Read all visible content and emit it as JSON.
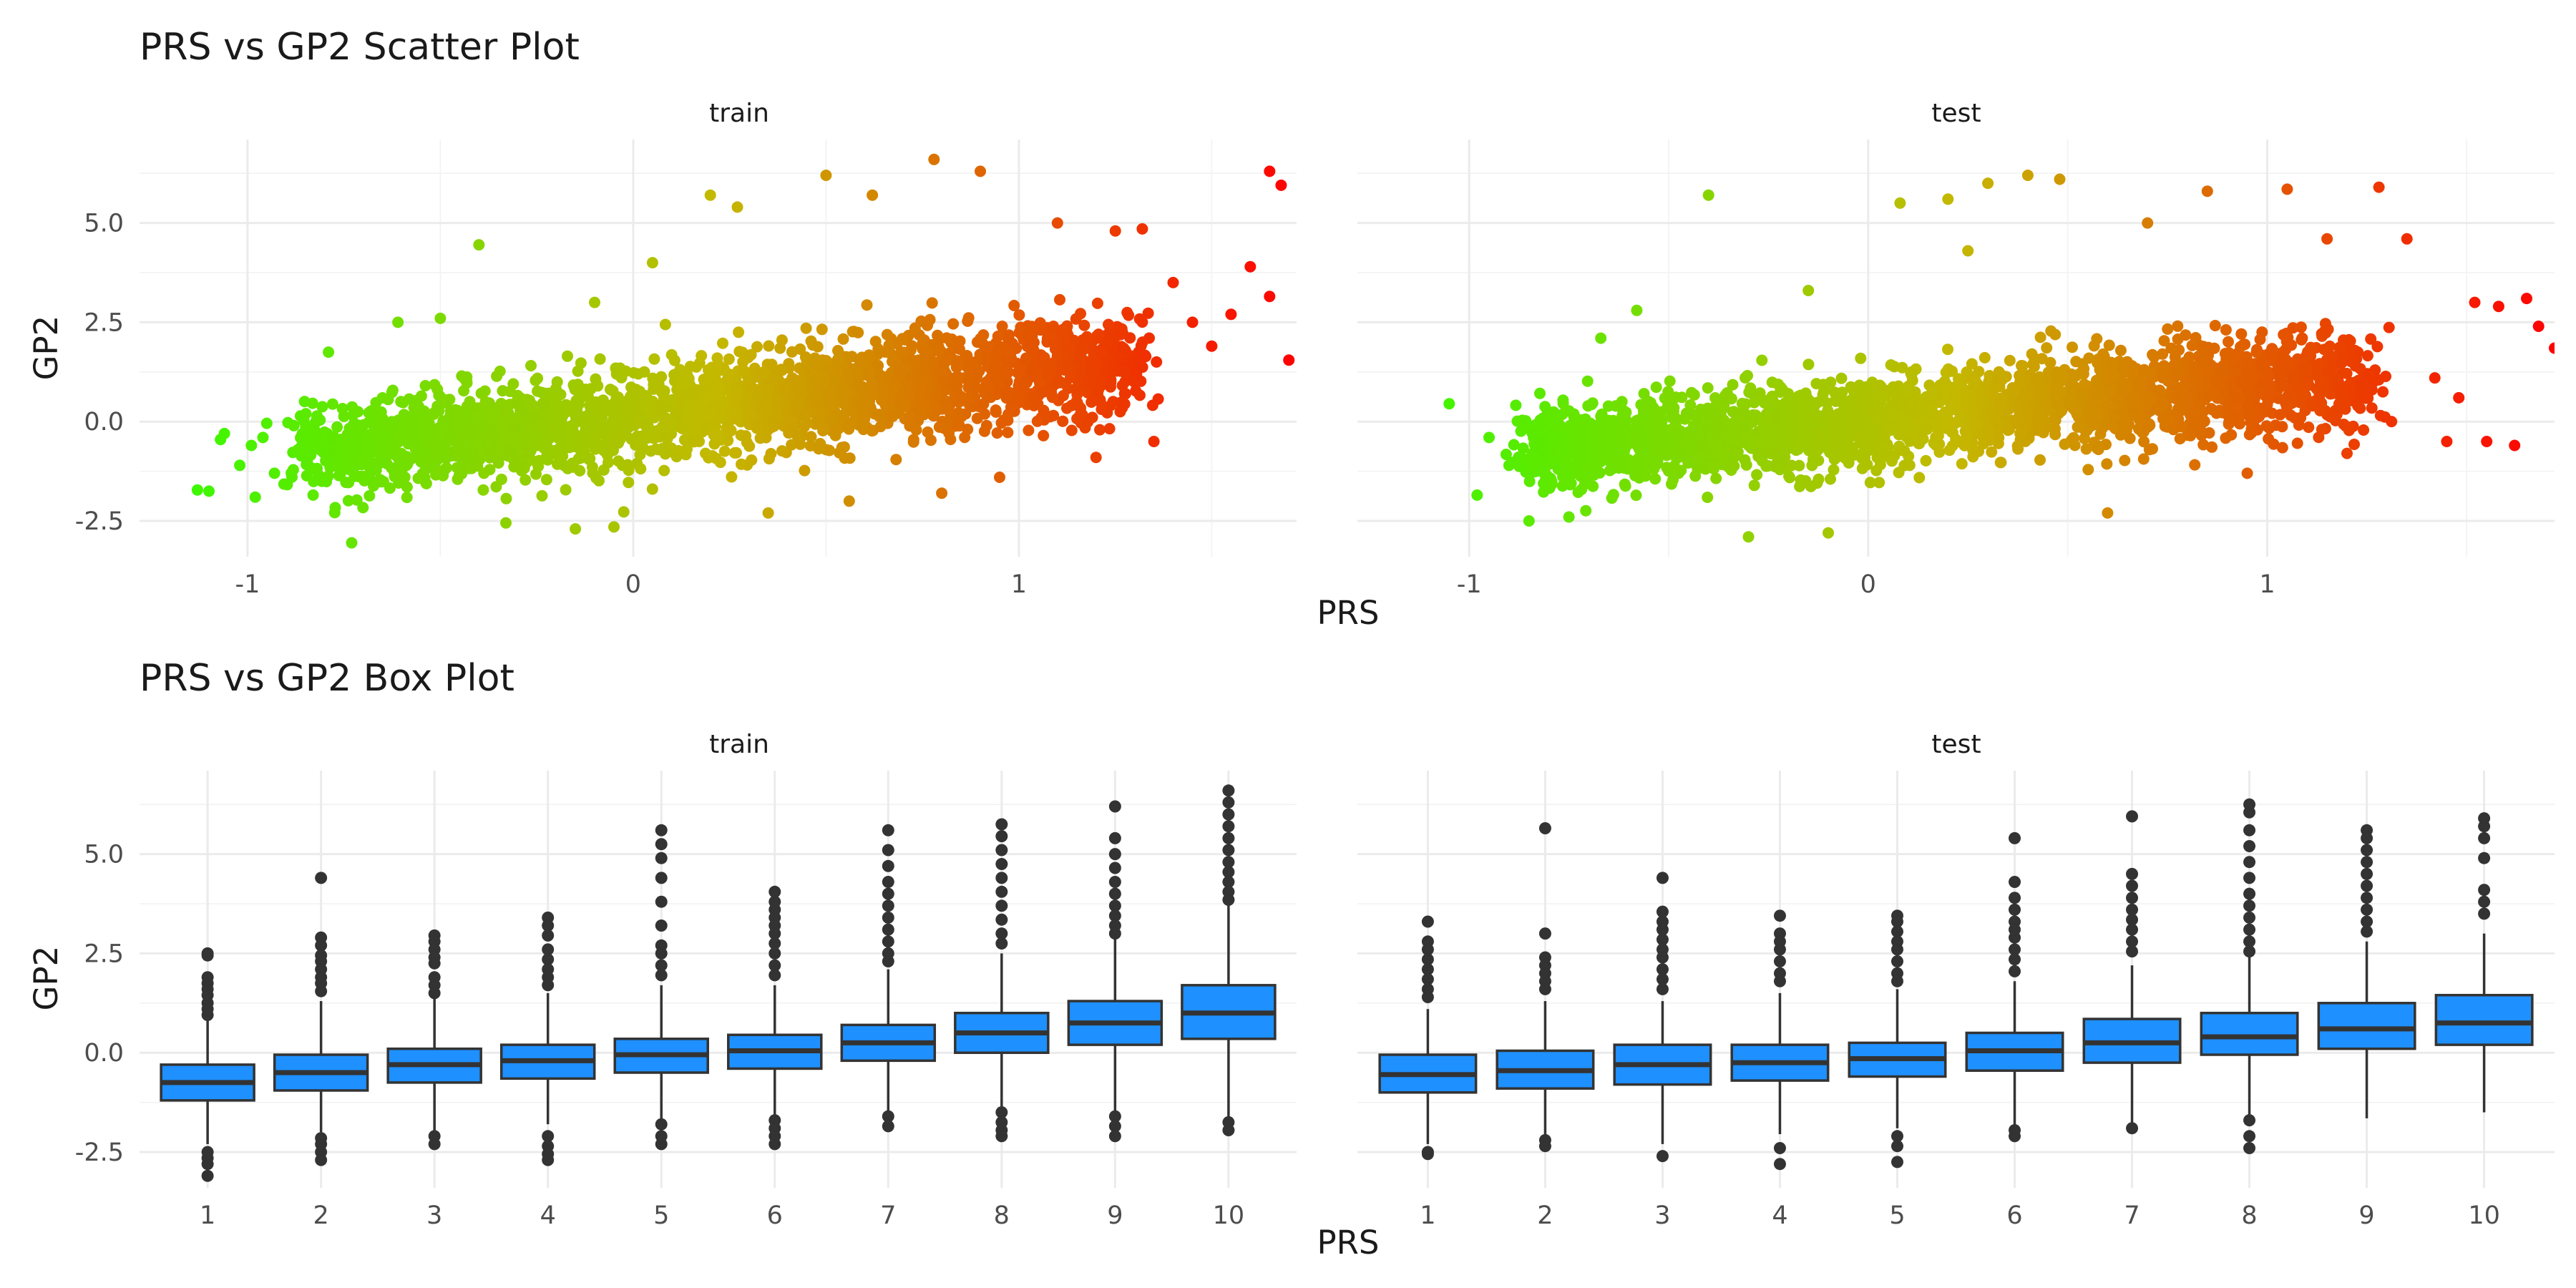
{
  "chart_data": [
    {
      "type": "scatter",
      "title": "PRS vs GP2 Scatter Plot",
      "xlabel": "PRS",
      "ylabel": "GP2",
      "color_low": "#2fff00",
      "color_mid": "#c4b800",
      "color_high": "#ff0000",
      "grid": true,
      "legend": "none",
      "panels": [
        {
          "label": "train",
          "xlim": [
            -1.28,
            1.72
          ],
          "ylim": [
            -3.4,
            7.1
          ],
          "x_ticks": [
            -1,
            0,
            1
          ],
          "x_tick_labels": [
            "-1",
            "0",
            "1"
          ],
          "y_ticks": [
            -2.5,
            0,
            2.5,
            5
          ],
          "y_tick_labels": [
            "-2.5",
            "0.0",
            "2.5",
            "5.0"
          ],
          "points": [
            [
              -1.13,
              -1.72
            ],
            [
              -1.1,
              -1.75
            ],
            [
              -1.07,
              -0.45
            ],
            [
              -1.06,
              -0.3
            ],
            [
              -1.02,
              -1.1
            ],
            [
              -0.99,
              -0.6
            ],
            [
              -0.98,
              -1.9
            ],
            [
              -0.96,
              -0.4
            ],
            [
              -0.93,
              -1.3
            ],
            [
              -0.88,
              -0.1
            ],
            [
              -0.82,
              0.1
            ],
            [
              -0.79,
              1.75
            ],
            [
              -0.73,
              -3.05
            ],
            [
              -0.61,
              2.5
            ],
            [
              -0.5,
              2.6
            ],
            [
              -0.4,
              4.45
            ],
            [
              -0.33,
              -2.55
            ],
            [
              -0.15,
              -2.7
            ],
            [
              -0.1,
              3.0
            ],
            [
              -0.05,
              -2.65
            ],
            [
              0.05,
              4.0
            ],
            [
              0.2,
              5.7
            ],
            [
              0.27,
              5.4
            ],
            [
              0.35,
              -2.3
            ],
            [
              0.5,
              6.2
            ],
            [
              0.56,
              -2.0
            ],
            [
              0.62,
              5.7
            ],
            [
              0.78,
              6.6
            ],
            [
              0.8,
              -1.8
            ],
            [
              0.9,
              6.3
            ],
            [
              0.95,
              -1.4
            ],
            [
              1.1,
              5.0
            ],
            [
              1.2,
              -0.9
            ],
            [
              1.25,
              4.8
            ],
            [
              1.32,
              4.85
            ],
            [
              1.35,
              -0.5
            ],
            [
              1.4,
              3.5
            ],
            [
              1.45,
              2.5
            ],
            [
              1.5,
              1.9
            ],
            [
              1.55,
              2.7
            ],
            [
              1.6,
              3.9
            ],
            [
              1.65,
              6.3
            ],
            [
              1.68,
              5.95
            ],
            [
              1.65,
              3.15
            ],
            [
              1.7,
              1.55
            ]
          ],
          "bulk_fit": {
            "intercept": 0.12,
            "slope": 1.1,
            "x_range": [
              -0.85,
              1.3
            ],
            "sd": [
              1.0,
              1.2,
              1.6
            ]
          }
        },
        {
          "label": "test",
          "xlim": [
            -1.28,
            1.72
          ],
          "ylim": [
            -3.4,
            7.1
          ],
          "x_ticks": [
            -1,
            0,
            1
          ],
          "x_tick_labels": [
            "-1",
            "0",
            "1"
          ],
          "y_ticks": [
            -2.5,
            0,
            2.5,
            5
          ],
          "y_tick_labels": [
            "-2.5",
            "0.0",
            "2.5",
            "5.0"
          ],
          "points": [
            [
              -1.05,
              0.45
            ],
            [
              -0.98,
              -1.85
            ],
            [
              -0.95,
              -0.4
            ],
            [
              -0.9,
              -1.1
            ],
            [
              -0.85,
              -2.5
            ],
            [
              -0.75,
              -2.4
            ],
            [
              -0.67,
              2.1
            ],
            [
              -0.58,
              2.8
            ],
            [
              -0.4,
              5.7
            ],
            [
              -0.3,
              -2.9
            ],
            [
              -0.15,
              3.3
            ],
            [
              -0.1,
              -2.8
            ],
            [
              0.08,
              5.5
            ],
            [
              0.2,
              5.6
            ],
            [
              0.25,
              4.3
            ],
            [
              0.3,
              6.0
            ],
            [
              0.4,
              6.2
            ],
            [
              0.48,
              6.1
            ],
            [
              0.6,
              -2.3
            ],
            [
              0.7,
              5.0
            ],
            [
              0.85,
              5.8
            ],
            [
              0.95,
              -1.3
            ],
            [
              1.05,
              5.85
            ],
            [
              1.15,
              4.6
            ],
            [
              1.2,
              -0.8
            ],
            [
              1.28,
              5.9
            ],
            [
              1.35,
              4.6
            ],
            [
              1.42,
              1.1
            ],
            [
              1.45,
              -0.5
            ],
            [
              1.48,
              0.6
            ],
            [
              1.52,
              3.0
            ],
            [
              1.55,
              -0.5
            ],
            [
              1.58,
              2.9
            ],
            [
              1.62,
              -0.6
            ],
            [
              1.65,
              3.1
            ],
            [
              1.68,
              2.4
            ],
            [
              1.72,
              1.85
            ]
          ],
          "bulk_fit": {
            "intercept": 0.05,
            "slope": 0.9,
            "x_range": [
              -0.85,
              1.25
            ],
            "sd": [
              0.95,
              1.15,
              1.55
            ]
          }
        }
      ]
    },
    {
      "type": "box",
      "title": "PRS vs GP2 Box Plot",
      "xlabel": "PRS",
      "ylabel": "GP2",
      "box_color": "#1e90ff",
      "line_color": "#333333",
      "grid": true,
      "legend": "none",
      "categories": [
        "1",
        "2",
        "3",
        "4",
        "5",
        "6",
        "7",
        "8",
        "9",
        "10"
      ],
      "panels": [
        {
          "label": "train",
          "ylim": [
            -3.4,
            7.1
          ],
          "y_ticks": [
            -2.5,
            0,
            2.5,
            5
          ],
          "y_tick_labels": [
            "-2.5",
            "0.0",
            "2.5",
            "5.0"
          ],
          "boxes": [
            {
              "q1": -1.2,
              "median": -0.75,
              "q3": -0.3,
              "low": -2.3,
              "high": 0.8
            },
            {
              "q1": -0.95,
              "median": -0.5,
              "q3": -0.05,
              "low": -2.0,
              "high": 1.3
            },
            {
              "q1": -0.75,
              "median": -0.3,
              "q3": 0.1,
              "low": -2.0,
              "high": 1.4
            },
            {
              "q1": -0.65,
              "median": -0.2,
              "q3": 0.2,
              "low": -1.8,
              "high": 1.5
            },
            {
              "q1": -0.5,
              "median": -0.05,
              "q3": 0.35,
              "low": -1.7,
              "high": 1.7
            },
            {
              "q1": -0.4,
              "median": 0.05,
              "q3": 0.45,
              "low": -1.6,
              "high": 1.7
            },
            {
              "q1": -0.2,
              "median": 0.25,
              "q3": 0.7,
              "low": -1.5,
              "high": 2.1
            },
            {
              "q1": 0.0,
              "median": 0.5,
              "q3": 1.0,
              "low": -1.4,
              "high": 2.5
            },
            {
              "q1": 0.2,
              "median": 0.75,
              "q3": 1.3,
              "low": -1.5,
              "high": 2.9
            },
            {
              "q1": 0.35,
              "median": 1.0,
              "q3": 1.7,
              "low": -1.6,
              "high": 3.7
            }
          ],
          "outliers": [
            [
              2.5,
              2.45,
              1.9,
              1.75,
              1.6,
              1.45,
              1.25,
              1.1,
              0.95,
              -2.5,
              -2.65,
              -2.8,
              -3.1
            ],
            [
              4.4,
              2.9,
              2.7,
              2.45,
              2.3,
              2.1,
              1.9,
              1.75,
              1.55,
              -2.15,
              -2.3,
              -2.5,
              -2.7
            ],
            [
              2.95,
              2.8,
              2.6,
              2.4,
              2.25,
              1.9,
              1.7,
              1.5,
              -2.1,
              -2.3
            ],
            [
              3.4,
              3.2,
              2.95,
              2.6,
              2.35,
              2.1,
              1.9,
              1.7,
              -2.1,
              -2.35,
              -2.55,
              -2.7
            ],
            [
              5.6,
              5.25,
              4.9,
              4.4,
              3.8,
              3.2,
              2.7,
              2.5,
              2.2,
              1.95,
              -1.8,
              -2.1,
              -2.3
            ],
            [
              4.05,
              3.8,
              3.6,
              3.4,
              3.2,
              3.0,
              2.75,
              2.5,
              2.2,
              1.95,
              -1.7,
              -1.9,
              -2.1,
              -2.3
            ],
            [
              5.6,
              5.1,
              4.7,
              4.3,
              4.0,
              3.7,
              3.4,
              3.1,
              2.8,
              2.5,
              2.3,
              -1.6,
              -1.85
            ],
            [
              5.75,
              5.45,
              5.1,
              4.75,
              4.4,
              4.05,
              3.7,
              3.35,
              3.0,
              2.75,
              -1.5,
              -1.75,
              -1.95,
              -2.1
            ],
            [
              6.2,
              5.4,
              5.0,
              4.65,
              4.3,
              4.0,
              3.7,
              3.45,
              3.2,
              3.0,
              -1.6,
              -1.85,
              -2.1
            ],
            [
              6.6,
              6.3,
              6.0,
              5.7,
              5.4,
              5.1,
              4.8,
              4.55,
              4.3,
              4.05,
              3.85,
              -1.75,
              -1.95
            ]
          ]
        },
        {
          "label": "test",
          "ylim": [
            -3.4,
            7.1
          ],
          "y_ticks": [
            -2.5,
            0,
            2.5,
            5
          ],
          "y_tick_labels": [
            "-2.5",
            "0.0",
            "2.5",
            "5.0"
          ],
          "boxes": [
            {
              "q1": -1.0,
              "median": -0.55,
              "q3": -0.05,
              "low": -2.3,
              "high": 1.1
            },
            {
              "q1": -0.9,
              "median": -0.45,
              "q3": 0.05,
              "low": -2.1,
              "high": 1.3
            },
            {
              "q1": -0.8,
              "median": -0.3,
              "q3": 0.2,
              "low": -2.3,
              "high": 1.3
            },
            {
              "q1": -0.7,
              "median": -0.25,
              "q3": 0.2,
              "low": -2.05,
              "high": 1.5
            },
            {
              "q1": -0.6,
              "median": -0.15,
              "q3": 0.25,
              "low": -1.9,
              "high": 1.6
            },
            {
              "q1": -0.45,
              "median": 0.05,
              "q3": 0.5,
              "low": -1.85,
              "high": 1.8
            },
            {
              "q1": -0.25,
              "median": 0.25,
              "q3": 0.85,
              "low": -1.8,
              "high": 2.2
            },
            {
              "q1": -0.05,
              "median": 0.4,
              "q3": 1.0,
              "low": -1.6,
              "high": 2.4
            },
            {
              "q1": 0.1,
              "median": 0.6,
              "q3": 1.25,
              "low": -1.65,
              "high": 2.8
            },
            {
              "q1": 0.2,
              "median": 0.75,
              "q3": 1.45,
              "low": -1.5,
              "high": 3.0
            }
          ],
          "outliers": [
            [
              3.3,
              2.8,
              2.6,
              2.35,
              2.1,
              1.85,
              1.6,
              1.4,
              -2.5,
              -2.55
            ],
            [
              5.65,
              3.0,
              2.4,
              2.2,
              2.0,
              1.8,
              1.6,
              -2.2,
              -2.35
            ],
            [
              4.4,
              3.55,
              3.3,
              3.1,
              2.85,
              2.6,
              2.4,
              2.1,
              1.85,
              1.6,
              -2.6
            ],
            [
              3.45,
              3.0,
              2.8,
              2.6,
              2.3,
              2.0,
              1.8,
              -2.4,
              -2.8
            ],
            [
              3.45,
              3.3,
              3.05,
              2.8,
              2.6,
              2.3,
              2.0,
              1.8,
              -2.1,
              -2.35,
              -2.75
            ],
            [
              5.4,
              4.3,
              3.9,
              3.6,
              3.3,
              3.1,
              2.9,
              2.6,
              2.35,
              2.05,
              -1.95,
              -2.1
            ],
            [
              5.95,
              4.5,
              4.2,
              3.9,
              3.6,
              3.35,
              3.1,
              2.8,
              2.55,
              -1.9
            ],
            [
              6.25,
              6.05,
              5.6,
              5.2,
              4.8,
              4.4,
              4.0,
              3.7,
              3.4,
              3.1,
              2.8,
              2.55,
              -1.7,
              -2.1,
              -2.4
            ],
            [
              5.6,
              5.4,
              5.1,
              4.8,
              4.5,
              4.2,
              3.9,
              3.6,
              3.3,
              3.05
            ],
            [
              5.9,
              5.7,
              5.4,
              4.9,
              4.1,
              3.8,
              3.5
            ]
          ]
        }
      ]
    }
  ]
}
